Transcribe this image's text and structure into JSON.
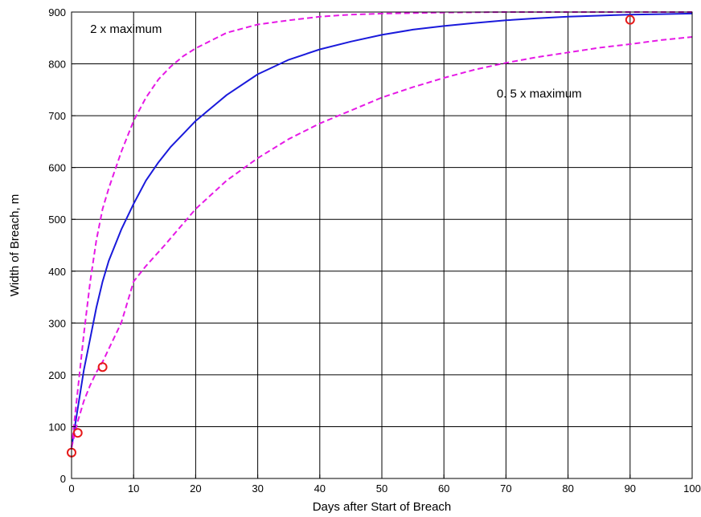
{
  "chart_data": {
    "type": "line",
    "title": "",
    "xlabel": "Days after Start of Breach",
    "ylabel": "Width of Breach, m",
    "xlim": [
      0,
      100
    ],
    "ylim": [
      0,
      900
    ],
    "xticks": [
      0,
      10,
      20,
      30,
      40,
      50,
      60,
      70,
      80,
      90,
      100
    ],
    "yticks": [
      0,
      100,
      200,
      300,
      400,
      500,
      600,
      700,
      800,
      900
    ],
    "grid": true,
    "legend": "none",
    "annotations": [
      {
        "id": "upper",
        "text": "2 x maximum",
        "x": 3,
        "y": 860
      },
      {
        "id": "lower",
        "text": "0. 5 x maximum",
        "x": 68.5,
        "y": 735
      }
    ],
    "series": [
      {
        "id": "nominal",
        "style": "solid",
        "color": "#1a1adb",
        "x": [
          0,
          1,
          2,
          3,
          4,
          5,
          6,
          8,
          10,
          12,
          14,
          16,
          18,
          20,
          25,
          30,
          35,
          40,
          45,
          50,
          55,
          60,
          65,
          70,
          75,
          80,
          85,
          90,
          95,
          100
        ],
        "y": [
          60,
          135,
          210,
          270,
          330,
          380,
          420,
          480,
          530,
          575,
          610,
          640,
          665,
          690,
          740,
          780,
          808,
          828,
          843,
          856,
          866,
          873,
          879,
          884,
          888,
          891,
          893,
          895,
          896,
          897
        ]
      },
      {
        "id": "upper",
        "style": "dashed",
        "color": "#e619e6",
        "x": [
          0,
          1,
          2,
          3,
          4,
          5,
          6,
          8,
          10,
          12,
          14,
          16,
          18,
          20,
          25,
          30,
          35,
          40,
          45,
          50,
          55,
          60,
          70,
          80,
          90,
          100
        ],
        "y": [
          60,
          170,
          280,
          380,
          460,
          520,
          560,
          630,
          690,
          735,
          770,
          795,
          815,
          830,
          860,
          876,
          884,
          891,
          895,
          897,
          898,
          899,
          900,
          900,
          900,
          900
        ]
      },
      {
        "id": "lower",
        "style": "dashed",
        "color": "#e619e6",
        "x": [
          0,
          1,
          2,
          3,
          4,
          5,
          6,
          8,
          10,
          12,
          15,
          20,
          25,
          30,
          35,
          40,
          45,
          50,
          55,
          60,
          65,
          70,
          75,
          80,
          85,
          90,
          95,
          100
        ],
        "y": [
          60,
          110,
          150,
          180,
          205,
          225,
          250,
          300,
          380,
          410,
          450,
          520,
          575,
          618,
          655,
          685,
          710,
          735,
          755,
          773,
          789,
          802,
          813,
          822,
          831,
          838,
          846,
          852
        ]
      },
      {
        "id": "observed",
        "style": "markers",
        "color": "#e61919",
        "marker": "circle",
        "x": [
          0,
          1,
          5,
          90
        ],
        "y": [
          50,
          88,
          215,
          885
        ]
      }
    ]
  }
}
